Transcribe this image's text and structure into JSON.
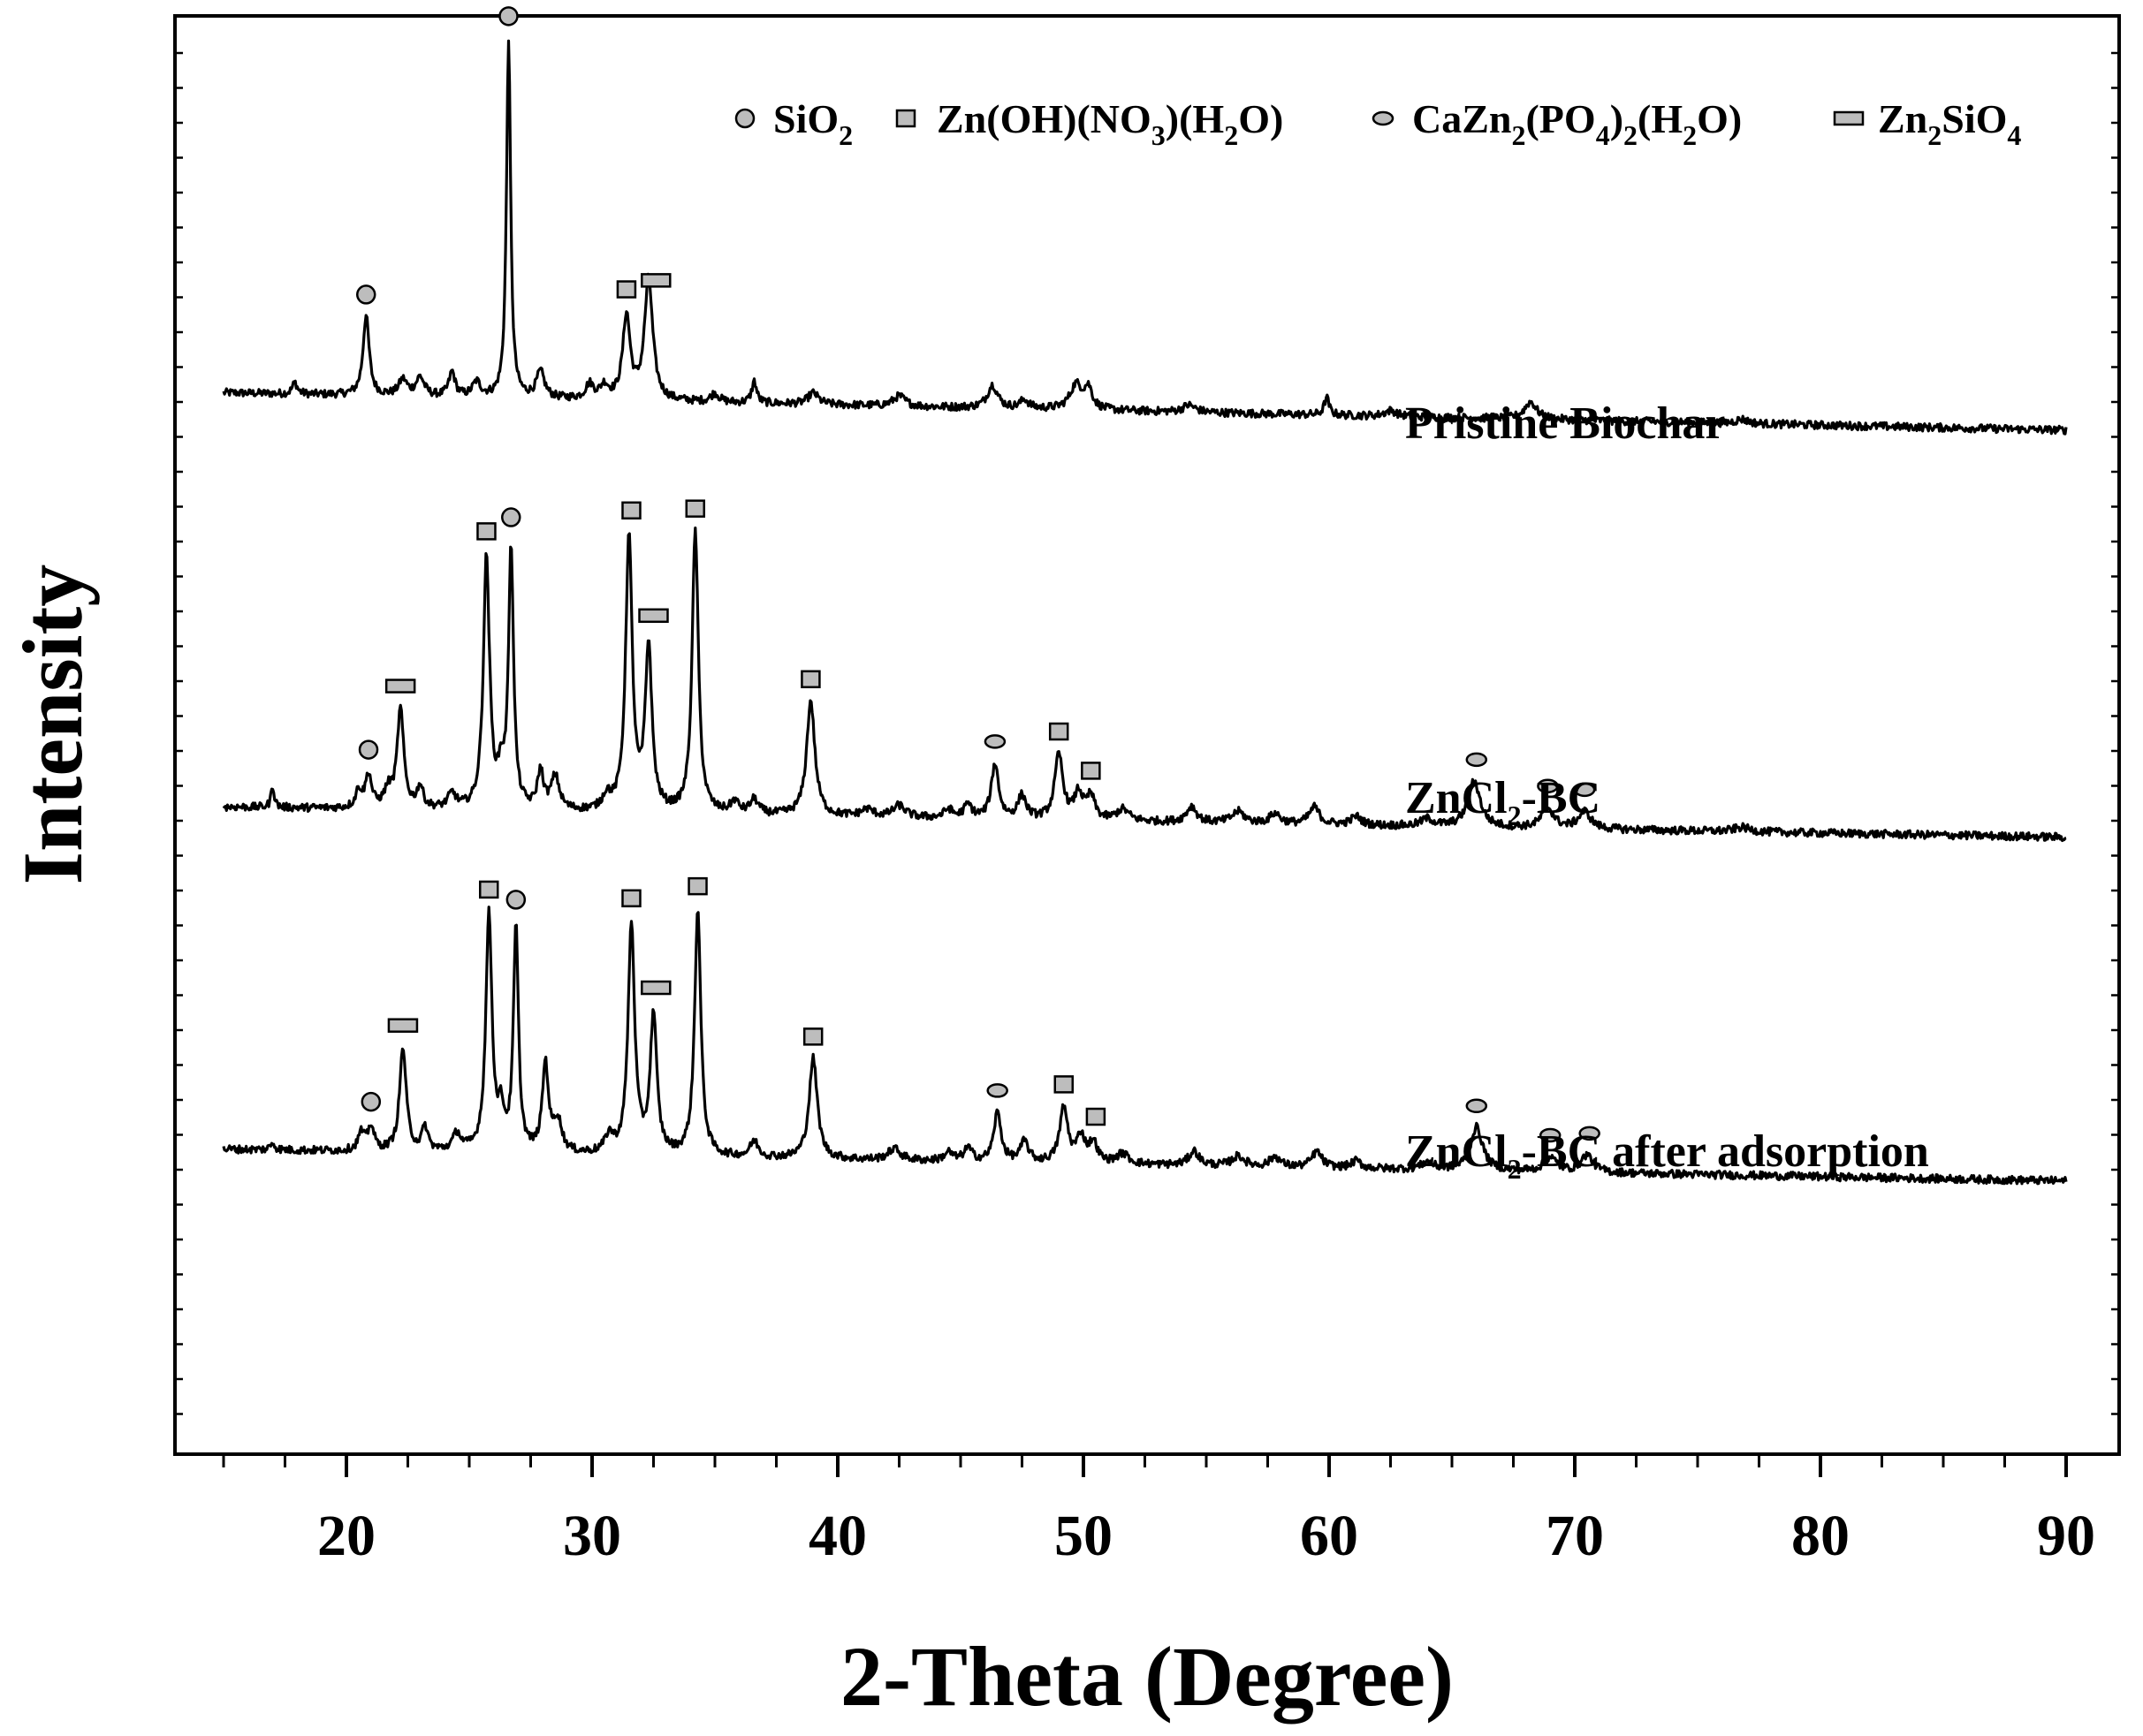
{
  "chart_data": {
    "type": "line",
    "xlabel": "2-Theta (Degree)",
    "ylabel": "Intensity",
    "xlim": [
      13,
      91
    ],
    "ylim": [
      0,
      100
    ],
    "xticks": [
      20,
      30,
      40,
      50,
      60,
      70,
      80,
      90
    ],
    "grid": false,
    "legend": {
      "placement": "top-right",
      "entries": [
        {
          "marker": "circle",
          "name": "SiO2",
          "parts": [
            [
              "SiO",
              false
            ],
            [
              "2",
              true
            ]
          ]
        },
        {
          "marker": "square",
          "name": "Zn(OH)(NO3)(H2O)",
          "parts": [
            [
              "Zn(OH)(NO",
              false
            ],
            [
              "3",
              true
            ],
            [
              ")(H",
              false
            ],
            [
              "2",
              true
            ],
            [
              "O)",
              false
            ]
          ]
        },
        {
          "marker": "ellipse",
          "name": "CaZn2(PO4)2(H2O)",
          "parts": [
            [
              "CaZn",
              false
            ],
            [
              "2",
              true
            ],
            [
              "(PO",
              false
            ],
            [
              "4",
              true
            ],
            [
              ")",
              false
            ],
            [
              "2",
              true
            ],
            [
              "(H",
              false
            ],
            [
              "2",
              true
            ],
            [
              "O)",
              false
            ]
          ]
        },
        {
          "marker": "rect",
          "name": "Zn2SiO4",
          "parts": [
            [
              "Zn",
              false
            ],
            [
              "2",
              true
            ],
            [
              "SiO",
              false
            ],
            [
              "4",
              true
            ]
          ]
        }
      ]
    },
    "series": [
      {
        "name": "Pristine Biochar",
        "label_parts": [
          [
            "Pristine Biochar",
            false
          ]
        ],
        "baseline_start": 73.8,
        "baseline_end": 71.2,
        "peaks": [
          {
            "x": 17.9,
            "h": 0.8,
            "w": 0.12
          },
          {
            "x": 20.8,
            "h": 5.5,
            "w": 0.15
          },
          {
            "x": 22.3,
            "h": 1.1,
            "w": 0.2
          },
          {
            "x": 23.0,
            "h": 1.3,
            "w": 0.2
          },
          {
            "x": 24.3,
            "h": 1.7,
            "w": 0.15
          },
          {
            "x": 25.3,
            "h": 1.0,
            "w": 0.2
          },
          {
            "x": 26.6,
            "h": 25.0,
            "w": 0.1
          },
          {
            "x": 27.9,
            "h": 1.8,
            "w": 0.2
          },
          {
            "x": 29.9,
            "h": 1.0,
            "w": 0.2
          },
          {
            "x": 30.5,
            "h": 0.9,
            "w": 0.2
          },
          {
            "x": 31.4,
            "h": 5.8,
            "w": 0.18
          },
          {
            "x": 32.3,
            "h": 8.4,
            "w": 0.2
          },
          {
            "x": 35.0,
            "h": 0.6,
            "w": 0.2
          },
          {
            "x": 36.6,
            "h": 1.5,
            "w": 0.12
          },
          {
            "x": 39.0,
            "h": 0.8,
            "w": 0.25
          },
          {
            "x": 42.5,
            "h": 0.7,
            "w": 0.3
          },
          {
            "x": 46.3,
            "h": 1.6,
            "w": 0.25
          },
          {
            "x": 47.6,
            "h": 0.6,
            "w": 0.2
          },
          {
            "x": 49.7,
            "h": 1.7,
            "w": 0.3
          },
          {
            "x": 50.2,
            "h": 1.4,
            "w": 0.2
          },
          {
            "x": 54.3,
            "h": 0.5,
            "w": 0.3
          },
          {
            "x": 59.9,
            "h": 1.2,
            "w": 0.12
          },
          {
            "x": 62.5,
            "h": 0.4,
            "w": 0.3
          },
          {
            "x": 68.2,
            "h": 1.2,
            "w": 0.3
          },
          {
            "x": 76.8,
            "h": 0.3,
            "w": 0.3
          }
        ]
      },
      {
        "name": "ZnCl2-BC",
        "label_parts": [
          [
            "ZnCl",
            false
          ],
          [
            "2",
            true
          ],
          [
            "-BC",
            false
          ]
        ],
        "baseline_start": 45.0,
        "baseline_end": 42.9,
        "peaks": [
          {
            "x": 17.0,
            "h": 1.5,
            "w": 0.08
          },
          {
            "x": 20.5,
            "h": 1.2,
            "w": 0.15
          },
          {
            "x": 20.9,
            "h": 2.3,
            "w": 0.15
          },
          {
            "x": 21.7,
            "h": 1.2,
            "w": 0.2
          },
          {
            "x": 22.2,
            "h": 6.8,
            "w": 0.16
          },
          {
            "x": 23.0,
            "h": 1.5,
            "w": 0.15
          },
          {
            "x": 24.3,
            "h": 1.0,
            "w": 0.2
          },
          {
            "x": 25.7,
            "h": 17.5,
            "w": 0.15
          },
          {
            "x": 26.3,
            "h": 2.2,
            "w": 0.15
          },
          {
            "x": 26.7,
            "h": 18.2,
            "w": 0.12
          },
          {
            "x": 27.9,
            "h": 2.6,
            "w": 0.15
          },
          {
            "x": 28.5,
            "h": 2.3,
            "w": 0.2
          },
          {
            "x": 30.6,
            "h": 1.0,
            "w": 0.2
          },
          {
            "x": 31.5,
            "h": 19.0,
            "w": 0.16
          },
          {
            "x": 32.3,
            "h": 11.4,
            "w": 0.16
          },
          {
            "x": 34.2,
            "h": 19.6,
            "w": 0.15
          },
          {
            "x": 35.8,
            "h": 0.8,
            "w": 0.2
          },
          {
            "x": 36.6,
            "h": 1.0,
            "w": 0.2
          },
          {
            "x": 38.9,
            "h": 8.0,
            "w": 0.2
          },
          {
            "x": 41.2,
            "h": 0.5,
            "w": 0.3
          },
          {
            "x": 42.5,
            "h": 0.8,
            "w": 0.3
          },
          {
            "x": 44.5,
            "h": 0.6,
            "w": 0.2
          },
          {
            "x": 45.3,
            "h": 0.9,
            "w": 0.2
          },
          {
            "x": 46.4,
            "h": 3.8,
            "w": 0.18
          },
          {
            "x": 47.5,
            "h": 1.6,
            "w": 0.2
          },
          {
            "x": 49.0,
            "h": 4.5,
            "w": 0.2
          },
          {
            "x": 49.8,
            "h": 1.8,
            "w": 0.2
          },
          {
            "x": 50.3,
            "h": 1.6,
            "w": 0.2
          },
          {
            "x": 51.6,
            "h": 0.8,
            "w": 0.3
          },
          {
            "x": 54.4,
            "h": 1.1,
            "w": 0.25
          },
          {
            "x": 56.3,
            "h": 0.8,
            "w": 0.3
          },
          {
            "x": 57.8,
            "h": 0.7,
            "w": 0.25
          },
          {
            "x": 59.4,
            "h": 1.2,
            "w": 0.25
          },
          {
            "x": 61.1,
            "h": 0.6,
            "w": 0.25
          },
          {
            "x": 64.0,
            "h": 0.5,
            "w": 0.3
          },
          {
            "x": 65.9,
            "h": 3.2,
            "w": 0.3
          },
          {
            "x": 68.9,
            "h": 1.4,
            "w": 0.3
          },
          {
            "x": 70.4,
            "h": 1.2,
            "w": 0.3
          },
          {
            "x": 76.8,
            "h": 0.3,
            "w": 0.4
          }
        ]
      },
      {
        "name": "ZnCl2-BC after adsorption",
        "label_parts": [
          [
            "ZnCl",
            false
          ],
          [
            "2",
            true
          ],
          [
            "-BC after adsorption",
            false
          ]
        ],
        "baseline_start": 21.2,
        "baseline_end": 19.0,
        "peaks": [
          {
            "x": 17.0,
            "h": 0.5,
            "w": 0.1
          },
          {
            "x": 20.6,
            "h": 1.2,
            "w": 0.15
          },
          {
            "x": 21.0,
            "h": 1.7,
            "w": 0.15
          },
          {
            "x": 22.3,
            "h": 7.2,
            "w": 0.16
          },
          {
            "x": 23.2,
            "h": 1.6,
            "w": 0.15
          },
          {
            "x": 24.5,
            "h": 1.2,
            "w": 0.2
          },
          {
            "x": 25.8,
            "h": 16.4,
            "w": 0.15
          },
          {
            "x": 26.3,
            "h": 2.4,
            "w": 0.15
          },
          {
            "x": 26.9,
            "h": 15.6,
            "w": 0.12
          },
          {
            "x": 28.1,
            "h": 6.1,
            "w": 0.15
          },
          {
            "x": 28.6,
            "h": 2.2,
            "w": 0.2
          },
          {
            "x": 30.7,
            "h": 1.2,
            "w": 0.2
          },
          {
            "x": 31.6,
            "h": 16.0,
            "w": 0.16
          },
          {
            "x": 32.5,
            "h": 9.6,
            "w": 0.16
          },
          {
            "x": 34.3,
            "h": 17.2,
            "w": 0.15
          },
          {
            "x": 36.6,
            "h": 1.1,
            "w": 0.2
          },
          {
            "x": 39.0,
            "h": 7.0,
            "w": 0.2
          },
          {
            "x": 42.3,
            "h": 0.8,
            "w": 0.3
          },
          {
            "x": 44.5,
            "h": 0.6,
            "w": 0.2
          },
          {
            "x": 45.3,
            "h": 0.9,
            "w": 0.2
          },
          {
            "x": 46.5,
            "h": 3.4,
            "w": 0.18
          },
          {
            "x": 47.6,
            "h": 1.4,
            "w": 0.2
          },
          {
            "x": 49.2,
            "h": 3.8,
            "w": 0.2
          },
          {
            "x": 49.9,
            "h": 1.8,
            "w": 0.2
          },
          {
            "x": 50.4,
            "h": 1.4,
            "w": 0.2
          },
          {
            "x": 51.6,
            "h": 0.7,
            "w": 0.3
          },
          {
            "x": 54.5,
            "h": 1.0,
            "w": 0.25
          },
          {
            "x": 56.3,
            "h": 0.7,
            "w": 0.3
          },
          {
            "x": 57.8,
            "h": 0.7,
            "w": 0.25
          },
          {
            "x": 59.5,
            "h": 1.1,
            "w": 0.25
          },
          {
            "x": 61.1,
            "h": 0.5,
            "w": 0.25
          },
          {
            "x": 64.0,
            "h": 0.5,
            "w": 0.3
          },
          {
            "x": 66.0,
            "h": 3.0,
            "w": 0.3
          },
          {
            "x": 69.0,
            "h": 1.0,
            "w": 0.3
          },
          {
            "x": 70.5,
            "h": 1.2,
            "w": 0.3
          }
        ]
      }
    ],
    "phase_markers": [
      {
        "series": 0,
        "x": 20.8,
        "phase": "SiO2"
      },
      {
        "series": 0,
        "x": 26.6,
        "phase": "SiO2"
      },
      {
        "series": 0,
        "x": 31.4,
        "phase": "Zn(OH)(NO3)(H2O)"
      },
      {
        "series": 0,
        "x": 32.6,
        "phase": "Zn2SiO4"
      },
      {
        "series": 1,
        "x": 20.9,
        "phase": "SiO2"
      },
      {
        "series": 1,
        "x": 22.2,
        "phase": "Zn2SiO4"
      },
      {
        "series": 1,
        "x": 25.7,
        "phase": "Zn(OH)(NO3)(H2O)"
      },
      {
        "series": 1,
        "x": 26.7,
        "phase": "SiO2"
      },
      {
        "series": 1,
        "x": 31.6,
        "phase": "Zn(OH)(NO3)(H2O)"
      },
      {
        "series": 1,
        "x": 32.5,
        "phase": "Zn2SiO4"
      },
      {
        "series": 1,
        "x": 34.2,
        "phase": "Zn(OH)(NO3)(H2O)"
      },
      {
        "series": 1,
        "x": 38.9,
        "phase": "Zn(OH)(NO3)(H2O)"
      },
      {
        "series": 1,
        "x": 46.4,
        "phase": "CaZn2(PO4)2(H2O)"
      },
      {
        "series": 1,
        "x": 49.0,
        "phase": "Zn(OH)(NO3)(H2O)"
      },
      {
        "series": 1,
        "x": 50.3,
        "phase": "Zn(OH)(NO3)(H2O)"
      },
      {
        "series": 1,
        "x": 66.0,
        "phase": "CaZn2(PO4)2(H2O)"
      },
      {
        "series": 1,
        "x": 68.9,
        "phase": "CaZn2(PO4)2(H2O)"
      },
      {
        "series": 1,
        "x": 70.4,
        "phase": "CaZn2(PO4)2(H2O)"
      },
      {
        "series": 2,
        "x": 21.0,
        "phase": "SiO2"
      },
      {
        "series": 2,
        "x": 22.3,
        "phase": "Zn2SiO4"
      },
      {
        "series": 2,
        "x": 25.8,
        "phase": "Zn(OH)(NO3)(H2O)"
      },
      {
        "series": 2,
        "x": 26.9,
        "phase": "SiO2"
      },
      {
        "series": 2,
        "x": 31.6,
        "phase": "Zn(OH)(NO3)(H2O)"
      },
      {
        "series": 2,
        "x": 32.6,
        "phase": "Zn2SiO4"
      },
      {
        "series": 2,
        "x": 34.3,
        "phase": "Zn(OH)(NO3)(H2O)"
      },
      {
        "series": 2,
        "x": 39.0,
        "phase": "Zn(OH)(NO3)(H2O)"
      },
      {
        "series": 2,
        "x": 46.5,
        "phase": "CaZn2(PO4)2(H2O)"
      },
      {
        "series": 2,
        "x": 49.2,
        "phase": "Zn(OH)(NO3)(H2O)"
      },
      {
        "series": 2,
        "x": 50.5,
        "phase": "Zn(OH)(NO3)(H2O)"
      },
      {
        "series": 2,
        "x": 66.0,
        "phase": "CaZn2(PO4)2(H2O)"
      },
      {
        "series": 2,
        "x": 69.0,
        "phase": "CaZn2(PO4)2(H2O)"
      },
      {
        "series": 2,
        "x": 70.6,
        "phase": "CaZn2(PO4)2(H2O)"
      }
    ]
  }
}
